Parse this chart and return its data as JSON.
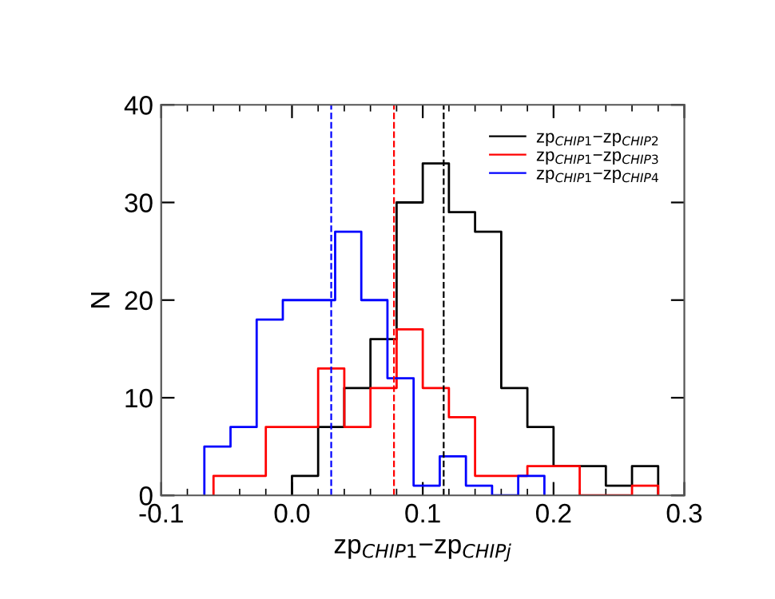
{
  "chart_data": {
    "type": "step",
    "xlabel": "zp$_{CHIP1}$−zp$_{CHIPj}$",
    "ylabel": "N",
    "xlim": [
      -0.1,
      0.3
    ],
    "xticks": [
      {
        "value": -0.1,
        "label": "-0.1"
      },
      {
        "value": 0.0,
        "label": "0.0"
      },
      {
        "value": 0.1,
        "label": "0.1"
      },
      {
        "value": 0.2,
        "label": "0.2"
      },
      {
        "value": 0.3,
        "label": "0.3"
      }
    ],
    "ylim": [
      0,
      40
    ],
    "yticks": [
      0,
      10,
      20,
      30,
      40
    ],
    "grid": false,
    "legend": "top right",
    "series": [
      {
        "name": "zp$_{CHIP1}$−zp$_{CHIP2}$",
        "color": "#000000",
        "x": [
          0.0,
          0.0,
          0.02,
          0.04,
          0.06,
          0.08,
          0.1,
          0.12,
          0.14,
          0.16,
          0.18,
          0.2,
          0.22,
          0.24,
          0.26,
          0.28
        ],
        "values": [
          0,
          2,
          7,
          11,
          16,
          30,
          34,
          29,
          27,
          11,
          7,
          3,
          3,
          1,
          3,
          0
        ]
      },
      {
        "name": "zp$_{CHIP1}$−zp$_{CHIP3}$",
        "color": "#ff0000",
        "x": [
          -0.06,
          -0.06,
          -0.04,
          -0.02,
          0.0,
          0.02,
          0.04,
          0.06,
          0.08,
          0.1,
          0.12,
          0.14,
          0.16,
          0.18,
          0.2,
          0.22,
          0.24,
          0.26,
          0.28
        ],
        "values": [
          0,
          2,
          2,
          7,
          7,
          13,
          7,
          11,
          17,
          11,
          8,
          2,
          2,
          3,
          3,
          0,
          0,
          1,
          0
        ]
      },
      {
        "name": "zp$_{CHIP1}$−zp$_{CHIP4}$",
        "color": "#0000ff",
        "x": [
          -0.067,
          -0.067,
          -0.047,
          -0.027,
          -0.007,
          0.013,
          0.033,
          0.053,
          0.073,
          0.093,
          0.113,
          0.133,
          0.153,
          0.173,
          0.193
        ],
        "values": [
          0,
          5,
          7,
          18,
          20,
          20,
          27,
          20,
          12,
          1,
          4,
          1,
          0,
          2,
          0
        ]
      }
    ],
    "ref_lines": [
      {
        "axis": "x",
        "value": 0.03,
        "color": "#0000ff",
        "line_style": "dashed"
      },
      {
        "axis": "x",
        "value": 0.078,
        "color": "#ff0000",
        "line_style": "dashed"
      },
      {
        "axis": "x",
        "value": 0.116,
        "color": "#000000",
        "line_style": "dashed"
      }
    ]
  }
}
